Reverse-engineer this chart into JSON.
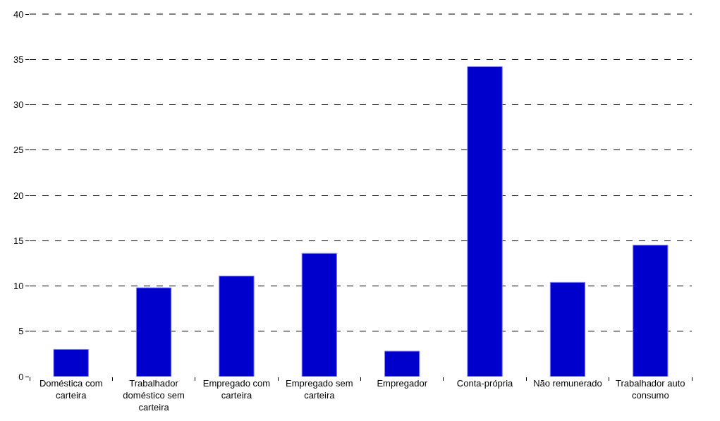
{
  "chart_data": {
    "type": "bar",
    "categories": [
      "Doméstica com carteira",
      "Trabalhador doméstico sem carteira",
      "Empregado com carteira",
      "Empregado sem carteira",
      "Empregador",
      "Conta-própria",
      "Não remunerado",
      "Trabalhador auto consumo"
    ],
    "values": [
      3.0,
      9.8,
      11.1,
      13.6,
      2.8,
      34.2,
      10.4,
      14.5
    ],
    "color": "#0000cc",
    "ylim": [
      0,
      40
    ],
    "yticks": [
      0,
      5,
      10,
      15,
      20,
      25,
      30,
      35,
      40
    ],
    "grid": "y"
  }
}
